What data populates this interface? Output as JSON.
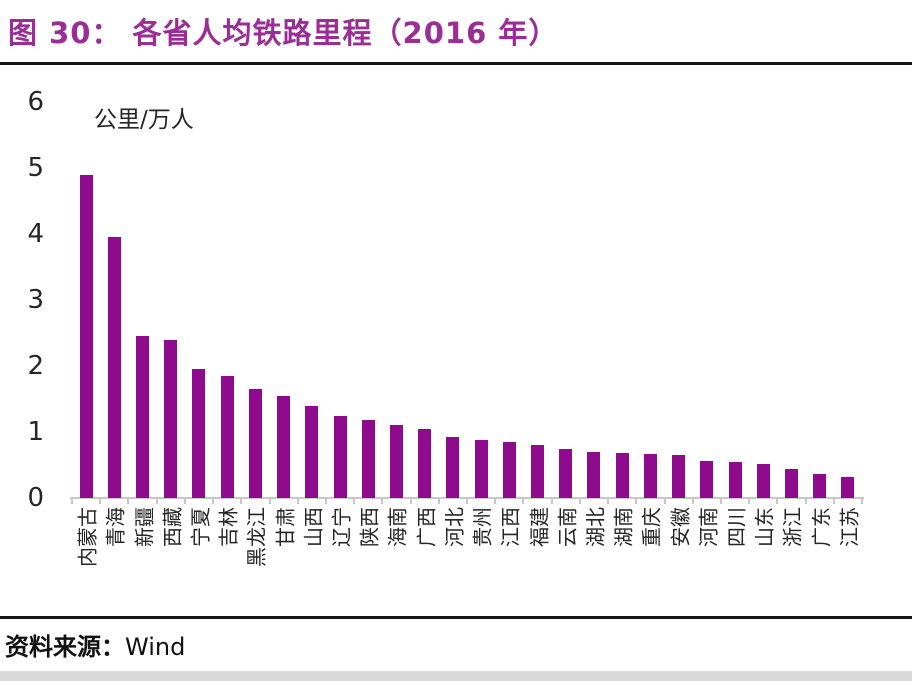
{
  "header": {
    "title": "图 30：  各省人均铁路里程（2016 年）"
  },
  "footer": {
    "source_label": "资料来源：",
    "source_value": "Wind"
  },
  "colors": {
    "bar": "#8E0B8E",
    "title": "#9A2D96",
    "axis": "#c8c8c8",
    "text": "#262626",
    "bottom_strip": "#d9d9d9"
  },
  "chart_data": {
    "type": "bar",
    "title": "各省人均铁路里程（2016 年）",
    "unit_label": "公里/万人",
    "xlabel": "",
    "ylabel": "公里/万人",
    "ylim": [
      0,
      6
    ],
    "yticks": [
      0,
      1,
      2,
      3,
      4,
      5,
      6
    ],
    "grid": false,
    "legend_position": "none",
    "bar_color": "#8E0B8E",
    "categories": [
      "内蒙古",
      "青海",
      "新疆",
      "西藏",
      "宁夏",
      "吉林",
      "黑龙江",
      "甘肃",
      "山西",
      "辽宁",
      "陕西",
      "海南",
      "广西",
      "河北",
      "贵州",
      "江西",
      "福建",
      "云南",
      "湖北",
      "湖南",
      "重庆",
      "安徽",
      "河南",
      "四川",
      "山东",
      "浙江",
      "广东",
      "江苏"
    ],
    "values": [
      4.9,
      3.95,
      2.45,
      2.4,
      1.95,
      1.85,
      1.65,
      1.55,
      1.4,
      1.25,
      1.18,
      1.1,
      1.05,
      0.92,
      0.88,
      0.85,
      0.8,
      0.74,
      0.7,
      0.68,
      0.67,
      0.65,
      0.56,
      0.54,
      0.52,
      0.44,
      0.36,
      0.32
    ]
  }
}
